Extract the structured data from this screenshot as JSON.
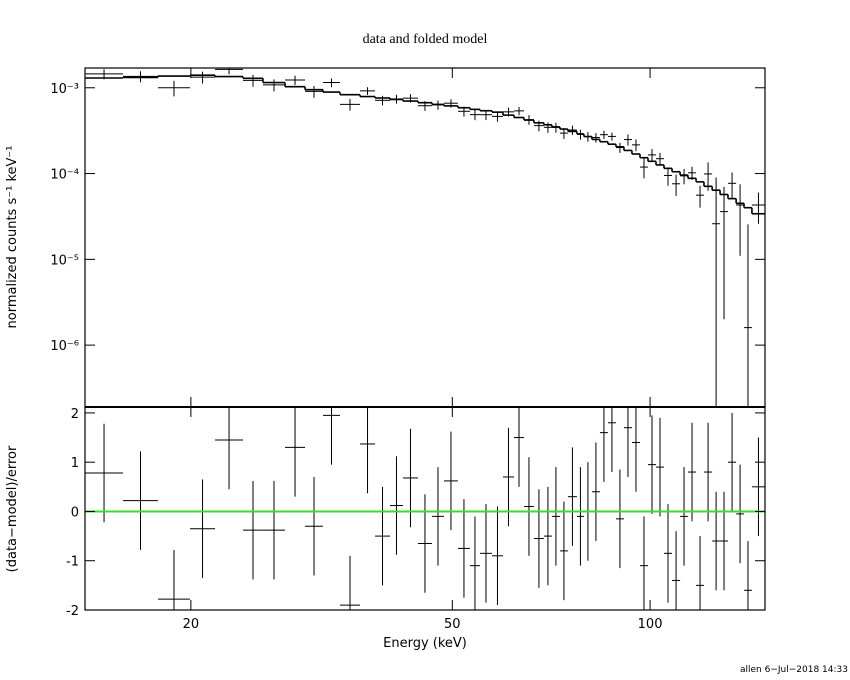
{
  "chart_data": {
    "type": "spectrum",
    "title": "data and folded model",
    "xlabel": "Energy (keV)",
    "ylabel": "normalized counts s⁻¹ keV⁻¹",
    "residual_ylabel": "(data−model)/error",
    "footer": "allen  6−Jul−2018 14:33",
    "log_x": true,
    "log_y": true,
    "data_color": "#000000",
    "model_color": "#000000",
    "zero_color": "#33dd33",
    "zero_line": 0,
    "xlim": [
      13.8,
      149.6
    ],
    "xticks": [
      20,
      50,
      100
    ],
    "ylim": [
      1.9e-07,
      0.0017
    ],
    "yticks": [
      {
        "value": 0.001,
        "label": "10⁻³"
      },
      {
        "value": 0.0001,
        "label": "10⁻⁴"
      },
      {
        "value": 1e-05,
        "label": "10⁻⁵"
      },
      {
        "value": 1e-06,
        "label": "10⁻⁶"
      }
    ],
    "residual_ylim": [
      -2,
      2.12
    ],
    "residual_yticks": [
      -2,
      -1,
      0,
      1,
      2
    ],
    "bins": [
      13.8,
      15.77,
      17.82,
      19.94,
      21.77,
      24.01,
      25.75,
      27.82,
      29.84,
      31.78,
      33.73,
      36.18,
      38.14,
      40.19,
      42.06,
      44.33,
      46.56,
      48.56,
      51.0,
      53.19,
      55.09,
      57.46,
      59.71,
      62.07,
      64.28,
      66.56,
      68.93,
      70.89,
      72.91,
      74.98,
      77.39,
      79.3,
      81.56,
      83.88,
      86.27,
      88.73,
      91.25,
      93.85,
      96.52,
      99.27,
      102.1,
      105.0,
      108.0,
      111.1,
      114.2,
      117.5,
      120.8,
      124.3,
      127.8,
      131.4,
      135.2,
      139.0,
      142.9,
      149.6
    ],
    "model": [
      0.0013,
      0.00132,
      0.00137,
      0.0014,
      0.00135,
      0.00129,
      0.00115,
      0.00103,
      0.00095,
      0.00089,
      0.00083,
      0.00079,
      0.00076,
      0.00073,
      0.0007,
      0.00067,
      0.00064,
      0.000615,
      0.000585,
      0.00056,
      0.00054,
      0.00052,
      0.00048,
      0.00045,
      0.00042,
      0.00039,
      0.00037,
      0.00035,
      0.00033,
      0.00031,
      0.00029,
      0.00027,
      0.00025,
      0.000235,
      0.00022,
      0.000205,
      0.000186,
      0.000169,
      0.000153,
      0.000139,
      0.000126,
      0.000115,
      0.000105,
      9.6e-05,
      8.8e-05,
      8e-05,
      7.1e-05,
      6.4e-05,
      5.7e-05,
      5.1e-05,
      4.5e-05,
      4e-05,
      3.4e-05
    ],
    "rate": [
      0.00145,
      0.00136,
      0.001,
      0.00133,
      0.00164,
      0.00122,
      0.00108,
      0.00123,
      0.000907,
      0.00115,
      0.000641,
      0.00092,
      0.000714,
      0.000741,
      0.000757,
      0.000618,
      0.000632,
      0.000661,
      0.000532,
      0.000486,
      0.000485,
      0.000464,
      0.000524,
      0.000538,
      0.000425,
      0.000362,
      0.000346,
      0.000345,
      0.000296,
      0.000322,
      0.000286,
      0.00027,
      0.000263,
      0.000284,
      0.000271,
      0.000201,
      0.000249,
      0.000216,
      0.000119,
      0.000165,
      0.000149,
      9.5e-05,
      7.6e-05,
      9.4e-05,
      0.000102,
      5.6e-05,
      9.9e-05,
      2.6e-05,
      3.6e-05,
      7.7e-05,
      4.3e-05,
      1.6e-06,
      4.3e-05
    ],
    "rate_err": [
      0.000195,
      0.000198,
      0.000206,
      0.00021,
      0.000203,
      0.000194,
      0.000173,
      0.000155,
      0.000143,
      0.000134,
      0.0001,
      9.5e-05,
      9.1e-05,
      8.8e-05,
      8.4e-05,
      8e-05,
      7.7e-05,
      7.4e-05,
      7e-05,
      6.7e-05,
      6.5e-05,
      6.2e-05,
      6.2e-05,
      5.9e-05,
      5.5e-05,
      5.1e-05,
      4.8e-05,
      4.6e-05,
      4.3e-05,
      4e-05,
      3.8e-05,
      3.5e-05,
      3.3e-05,
      3.1e-05,
      2.9e-05,
      2.7e-05,
      3.7e-05,
      3.4e-05,
      3.1e-05,
      2.8e-05,
      2.5e-05,
      2.3e-05,
      2.1e-05,
      1.9e-05,
      1.8e-05,
      1.6e-05,
      3.6e-05,
      6.4e-05,
      3.4e-05,
      2.6e-05,
      3.2e-05,
      2.4e-05,
      1.7e-05
    ],
    "residual": [
      0.78,
      0.22,
      -1.78,
      -0.35,
      1.45,
      -0.38,
      -0.38,
      1.3,
      -0.3,
      1.95,
      -1.9,
      1.37,
      -0.5,
      0.12,
      0.68,
      -0.65,
      -0.1,
      0.62,
      -0.75,
      -1.1,
      -0.85,
      -0.9,
      0.7,
      1.5,
      0.1,
      -0.55,
      -0.5,
      -0.1,
      -0.8,
      0.3,
      -0.1,
      0.0,
      0.4,
      1.6,
      1.8,
      -0.15,
      1.7,
      1.4,
      -1.1,
      0.95,
      0.9,
      -0.85,
      -1.4,
      -0.1,
      0.8,
      -1.5,
      0.8,
      -0.6,
      -0.6,
      1.0,
      -0.05,
      -1.6,
      0.5
    ],
    "residual_err": [
      1,
      1,
      1,
      1,
      1,
      1,
      1,
      1,
      1,
      1,
      1,
      1,
      1,
      1,
      1,
      1,
      1,
      1,
      1,
      1,
      1,
      1,
      1,
      1,
      1,
      1,
      1,
      1,
      1,
      1,
      1,
      1,
      1,
      1,
      1,
      1,
      1,
      1,
      1,
      1,
      1,
      1,
      1,
      1,
      1,
      1,
      1,
      1,
      1,
      1,
      1,
      1,
      1
    ]
  }
}
